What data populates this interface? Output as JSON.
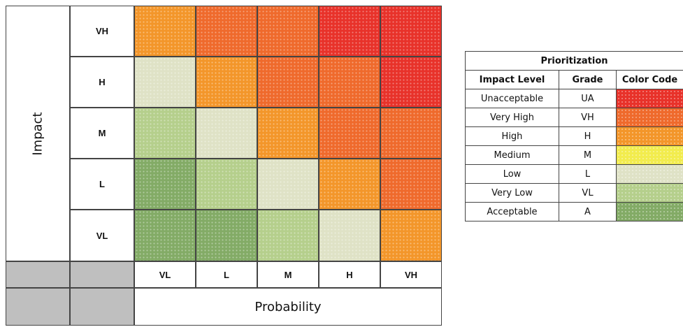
{
  "matrix": {
    "axis_title_impact": "Impact",
    "axis_title_probability": "Probability",
    "impact_levels": [
      "VH",
      "H",
      "M",
      "L",
      "VL"
    ],
    "probability_levels": [
      "VL",
      "L",
      "M",
      "H",
      "VH"
    ],
    "grid_grades": [
      [
        "H",
        "VH",
        "VH",
        "UA",
        "UA"
      ],
      [
        "L",
        "H",
        "VH",
        "VH",
        "UA"
      ],
      [
        "VL",
        "L",
        "H",
        "VH",
        "VH"
      ],
      [
        "A",
        "VL",
        "L",
        "H",
        "VH"
      ],
      [
        "A",
        "A",
        "VL",
        "L",
        "H"
      ]
    ]
  },
  "legend": {
    "title": "Prioritization",
    "headers": [
      "Impact Level",
      "Grade",
      "Color Code"
    ],
    "rows": [
      {
        "level": "Unacceptable",
        "grade": "UA"
      },
      {
        "level": "Very High",
        "grade": "VH"
      },
      {
        "level": "High",
        "grade": "H"
      },
      {
        "level": "Medium",
        "grade": "M"
      },
      {
        "level": "Low",
        "grade": "L"
      },
      {
        "level": "Very Low",
        "grade": "VL"
      },
      {
        "level": "Acceptable",
        "grade": "A"
      }
    ]
  },
  "grade_colors": {
    "UA": "#e8322a",
    "VH": "#ef6a2c",
    "H": "#f3962a",
    "M": "#f2ec4e",
    "L": "#dfe2c6",
    "VL": "#b5cf8c",
    "A": "#83ab66"
  }
}
